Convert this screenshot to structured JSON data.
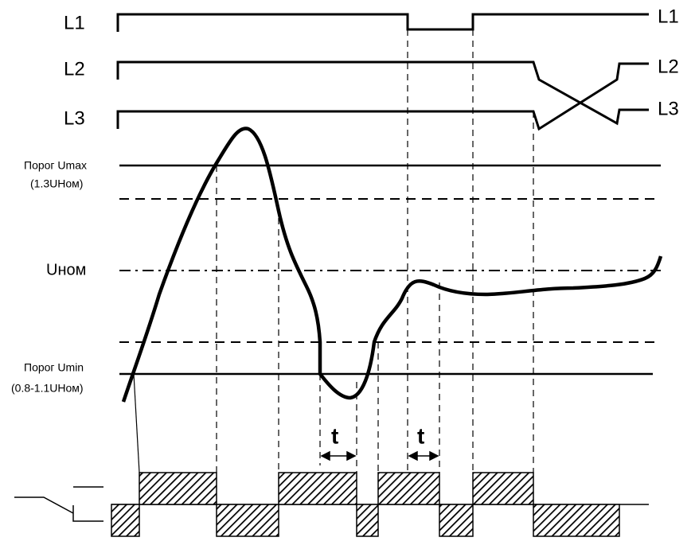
{
  "phases": {
    "left": [
      "L1",
      "L2",
      "L3"
    ],
    "right": [
      "L1",
      "L2",
      "L3"
    ]
  },
  "thresholds": {
    "umax": {
      "label": "Порог Umax",
      "value": "(1.3UНом)"
    },
    "unom": "Uном",
    "umin": {
      "label": "Порог Umin",
      "value": "(0.8-1.1UНом)"
    }
  },
  "delays": [
    "t",
    "t"
  ]
}
